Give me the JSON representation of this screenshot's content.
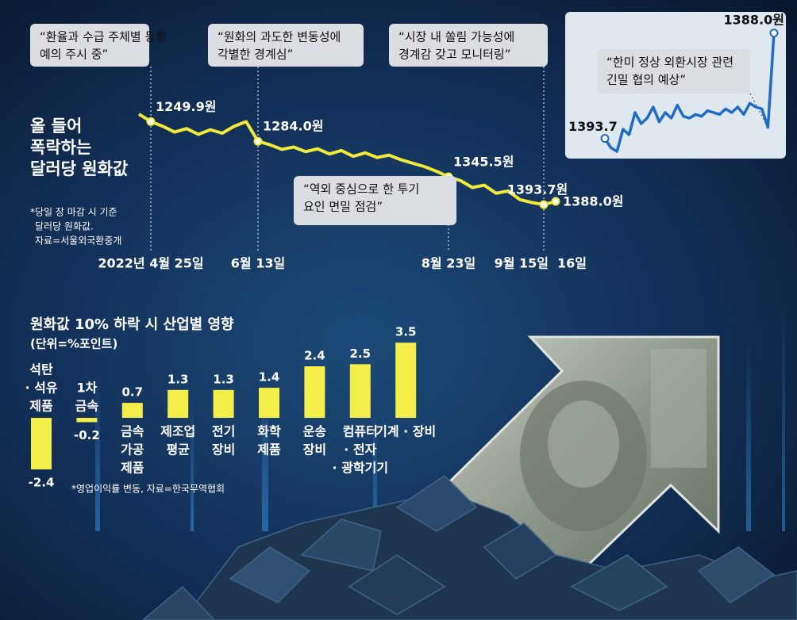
{
  "chart_data": [
    {
      "type": "line",
      "title": [
        "올 들어",
        "폭락하는",
        "달러당 원화값"
      ],
      "note": [
        "*당일 장 마감 시 기준",
        "달러당 원화값.",
        "자료=서울외국환중개"
      ],
      "categories": [
        null,
        "2022년 4월 25일",
        null,
        null,
        null,
        null,
        null,
        null,
        null,
        null,
        "6월 13일",
        null,
        null,
        null,
        null,
        null,
        null,
        null,
        null,
        null,
        null,
        null,
        null,
        null,
        null,
        null,
        "8월 23일",
        null,
        null,
        null,
        null,
        null,
        null,
        null,
        "9월 15일",
        "16일"
      ],
      "values": [
        1237,
        1249.9,
        1258,
        1268,
        1262,
        1272,
        1264,
        1270,
        1258,
        1250,
        1284.0,
        1290,
        1298,
        1294,
        1302,
        1297,
        1306,
        1300,
        1310,
        1304,
        1312,
        1308,
        1316,
        1322,
        1328,
        1336,
        1345.5,
        1352,
        1364,
        1360,
        1374,
        1370,
        1385,
        1390,
        1393.7,
        1388.0
      ],
      "value_labels": [
        null,
        "1249.9원",
        null,
        null,
        null,
        null,
        null,
        null,
        null,
        null,
        "1284.0원",
        null,
        null,
        null,
        null,
        null,
        null,
        null,
        null,
        null,
        null,
        null,
        null,
        null,
        null,
        null,
        "1345.5원",
        null,
        null,
        null,
        null,
        null,
        null,
        null,
        "1393.7원",
        "1388.0원"
      ],
      "color": "#f2ea3a",
      "ylim": [
        1410,
        1200
      ],
      "annotations": [
        [
          "“환율과 수급 주체별 동향",
          "예의 주시 중”"
        ],
        [
          "“원화의 과도한 변동성에",
          "각별한 경계심”"
        ],
        [
          "“시장 내 쏠림 가능성에",
          "경계감 갖고 모니터링”"
        ],
        [
          "“역외 중심으로 한 투기",
          "요인 면밀 점검”"
        ]
      ]
    },
    {
      "type": "line",
      "values": [
        1393.7,
        1394.2,
        1394.4,
        1393.2,
        1393.5,
        1392.3,
        1392.9,
        1392.6,
        1392.0,
        1392.8,
        1392.3,
        1392.6,
        1391.9,
        1392.5,
        1392.6,
        1392.4,
        1392.5,
        1392.2,
        1392.3,
        1392.4,
        1392.1,
        1392.3,
        1392.0,
        1392.4,
        1391.8,
        1392.0,
        1392.1,
        1393.1,
        1388.0
      ],
      "value_labels": [
        "1393.7",
        null,
        null,
        null,
        null,
        null,
        null,
        null,
        null,
        null,
        null,
        null,
        null,
        null,
        null,
        null,
        null,
        null,
        null,
        null,
        null,
        null,
        null,
        null,
        null,
        null,
        null,
        null,
        "1388.0원"
      ],
      "color": "#1f6cc4",
      "ylim": [
        1395,
        1387.5
      ],
      "annotations": [
        [
          "“한미 정상 외환시장 관련",
          "긴밀 협의 예상”"
        ]
      ]
    },
    {
      "type": "bar",
      "title": "원화값 10% 하락 시 산업별 영향",
      "subtitle": "(단위=%포인트)",
      "note": "*영업이익률 변동, 자료=한국무역협회",
      "categories": [
        [
          "석탄",
          "· 석유",
          "제품"
        ],
        [
          "1차",
          "금속"
        ],
        [
          "금속",
          "가공",
          "제품"
        ],
        [
          "제조업",
          "평균"
        ],
        [
          "전기",
          "장비"
        ],
        [
          "화학",
          "제품"
        ],
        [
          "운송",
          "장비"
        ],
        [
          "컴퓨터",
          "· 전자",
          "· 광학기기"
        ],
        [
          "기계 · 장비"
        ]
      ],
      "values": [
        -2.4,
        -0.2,
        0.7,
        1.3,
        1.3,
        1.4,
        2.4,
        2.5,
        3.5
      ],
      "color": "#f4ee4a",
      "ylim": [
        -2.6,
        3.6
      ]
    }
  ]
}
